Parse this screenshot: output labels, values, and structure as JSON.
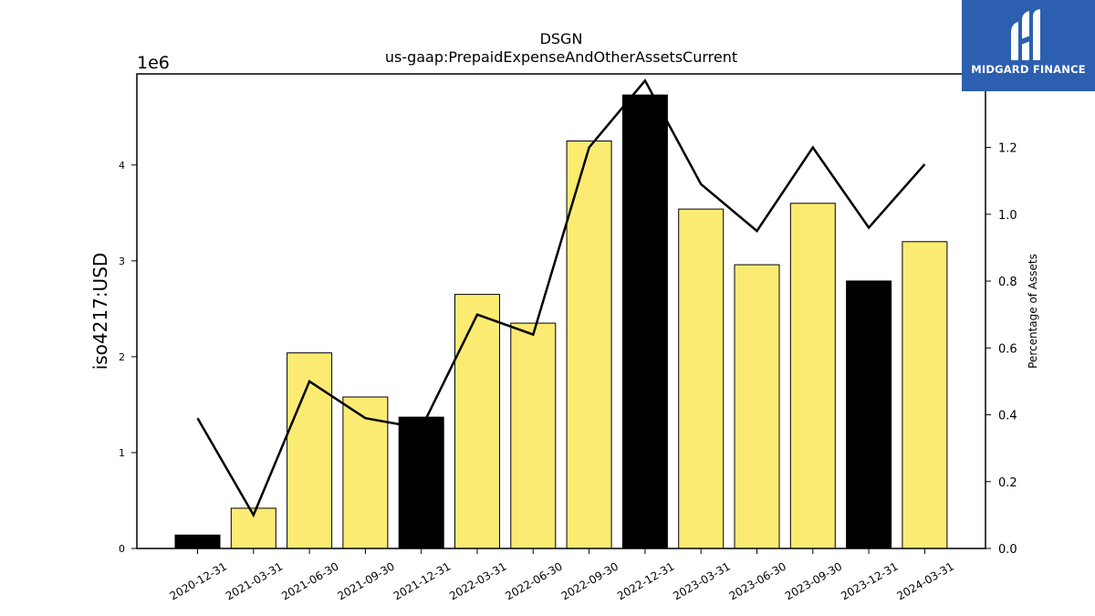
{
  "chart_data": {
    "type": "bar",
    "title": "DSGN",
    "subtitle": "us-gaap:PrepaidExpenseAndOtherAssetsCurrent",
    "ylabel": "iso4217:USD",
    "y_multiplier_label": "1e6",
    "y2label": "Percentage of Assets",
    "categories": [
      "2020-12-31",
      "2021-03-31",
      "2021-06-30",
      "2021-09-30",
      "2021-12-31",
      "2022-03-31",
      "2022-06-30",
      "2022-09-30",
      "2022-12-31",
      "2023-03-31",
      "2023-06-30",
      "2023-09-30",
      "2023-12-31",
      "2024-03-31"
    ],
    "values": [
      140000,
      420000,
      2040000,
      1580000,
      1370000,
      2650000,
      2350000,
      4250000,
      4730000,
      3540000,
      2960000,
      3600000,
      2790000,
      3200000
    ],
    "bar_colors": [
      "#000000",
      "#fceb72",
      "#fceb72",
      "#fceb72",
      "#000000",
      "#fceb72",
      "#fceb72",
      "#fceb72",
      "#000000",
      "#fceb72",
      "#fceb72",
      "#fceb72",
      "#000000",
      "#fceb72"
    ],
    "line_series": {
      "axis": "right",
      "values": [
        0.39,
        0.1,
        0.5,
        0.39,
        0.36,
        0.7,
        0.64,
        1.2,
        1.4,
        1.09,
        0.95,
        1.2,
        0.96,
        1.15
      ]
    },
    "ylim": [
      0,
      4950000
    ],
    "y_ticks": [
      0,
      1000000,
      2000000,
      3000000,
      4000000
    ],
    "y_tick_labels": [
      "0",
      "1",
      "2",
      "3",
      "4"
    ],
    "y2lim": [
      0,
      1.42
    ],
    "y2_ticks": [
      0,
      0.2,
      0.4,
      0.6,
      0.8,
      1.0,
      1.2
    ],
    "y2_tick_labels": [
      "0.0",
      "0.2",
      "0.4",
      "0.6",
      "0.8",
      "1.0",
      "1.2"
    ],
    "grid": false
  },
  "logo": {
    "text": "MIDGARD FINANCE",
    "bg_color": "#2c5fb0",
    "icon": "midgard-logo-icon"
  }
}
